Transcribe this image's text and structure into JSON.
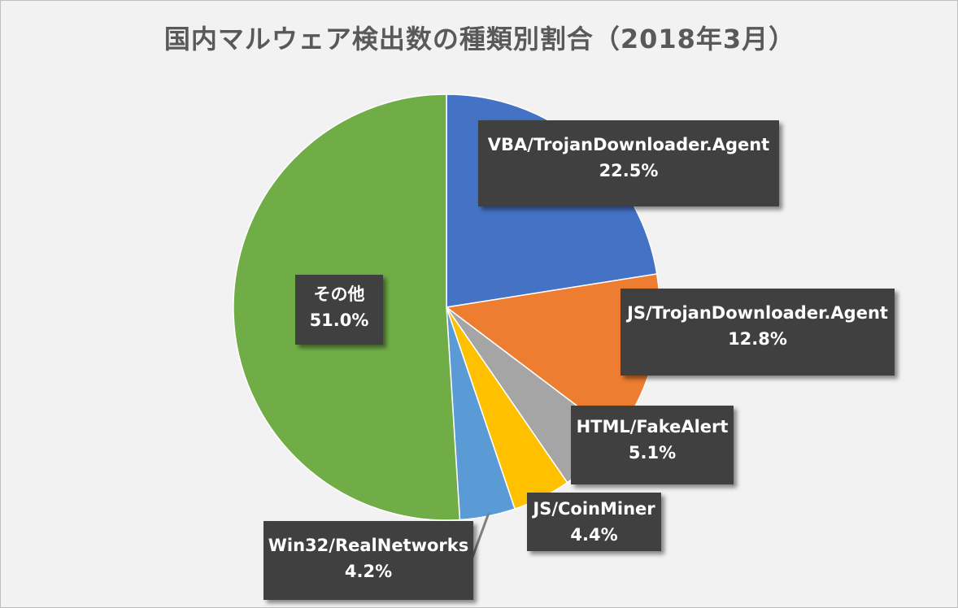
{
  "chart_data": {
    "type": "pie",
    "title": "国内マルウェア検出数の種類別割合（2018年3月）",
    "start_angle_deg": 0,
    "direction": "clockwise",
    "slices": [
      {
        "name": "VBA/TrojanDownloader.Agent",
        "value": 22.5,
        "label": "22.5%",
        "color": "#4472c4"
      },
      {
        "name": "JS/TrojanDownloader.Agent",
        "value": 12.8,
        "label": "12.8%",
        "color": "#ed7d31"
      },
      {
        "name": "HTML/FakeAlert",
        "value": 5.1,
        "label": "5.1%",
        "color": "#a5a5a5"
      },
      {
        "name": "JS/CoinMiner",
        "value": 4.4,
        "label": "4.4%",
        "color": "#ffc000"
      },
      {
        "name": "Win32/RealNetworks",
        "value": 4.2,
        "label": "4.2%",
        "color": "#5b9bd5"
      },
      {
        "name": "その他",
        "value": 51.0,
        "label": "51.0%",
        "color": "#70ad47"
      }
    ]
  }
}
